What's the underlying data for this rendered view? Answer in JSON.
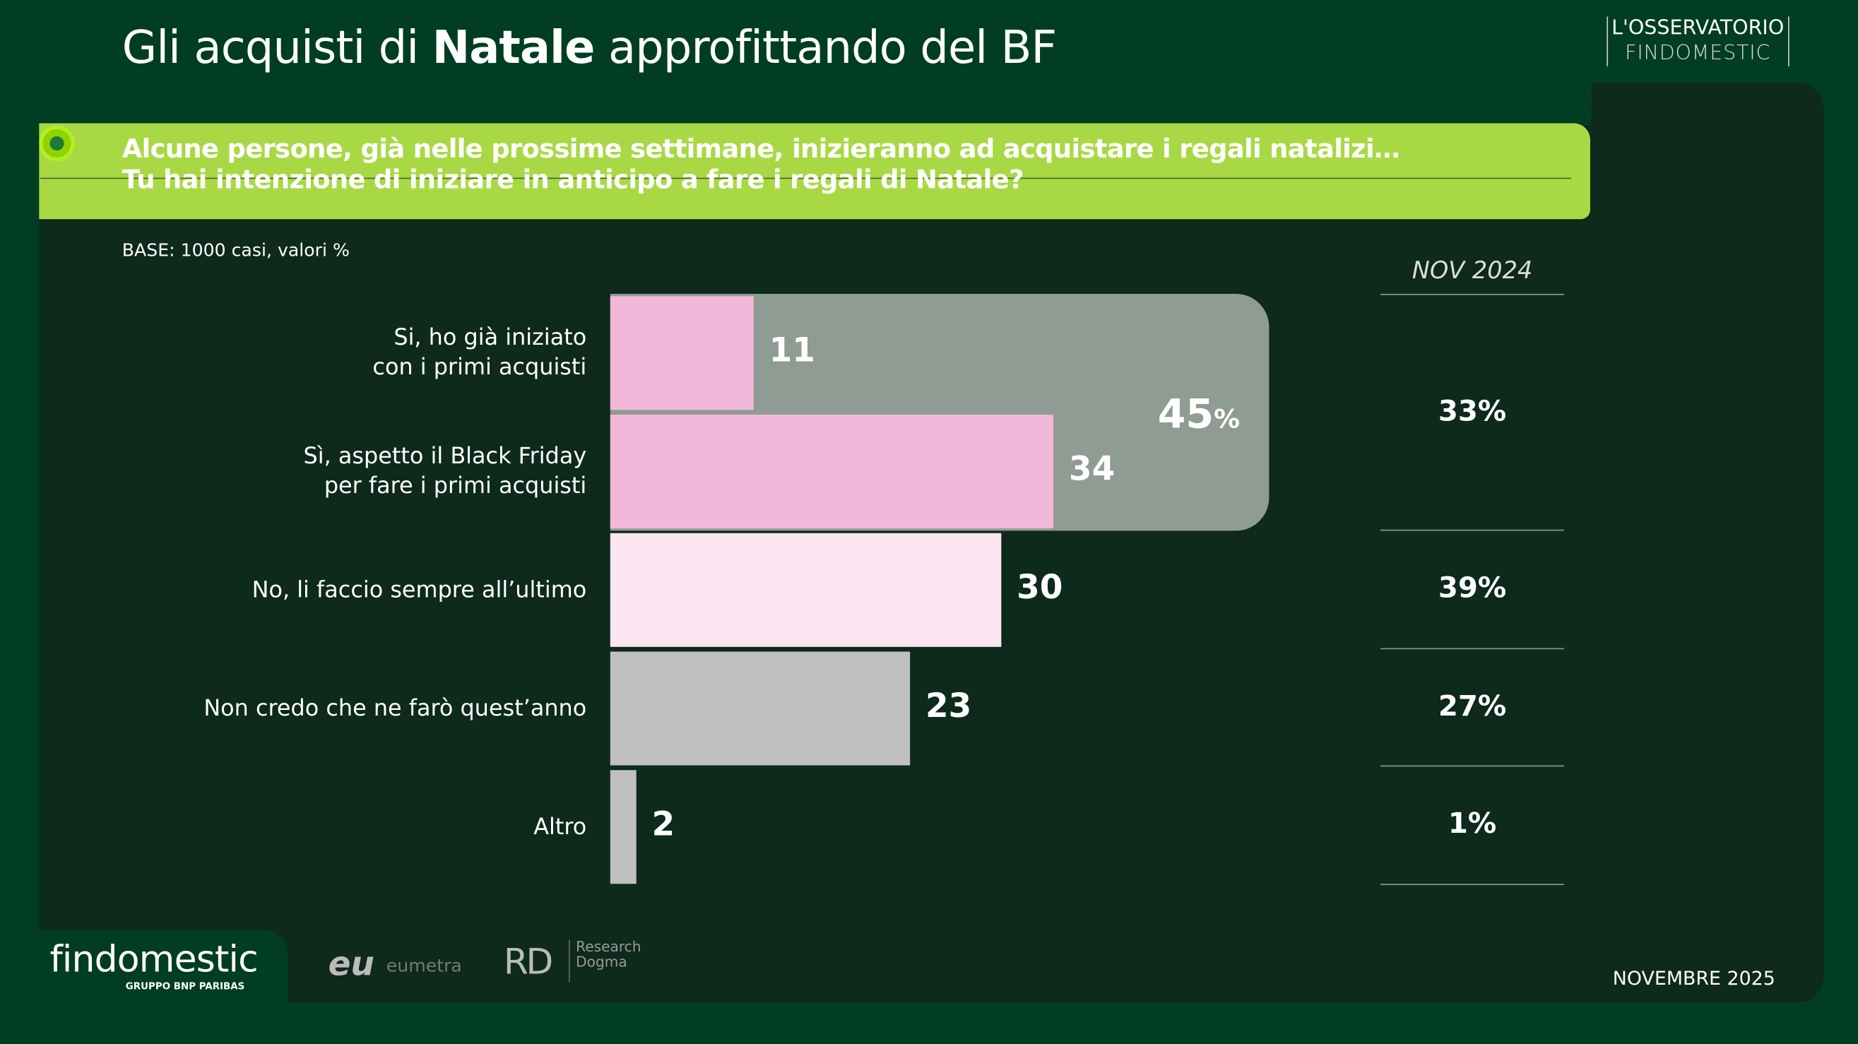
{
  "header": {
    "title_pre": "Gli acquisti di ",
    "title_bold": "Natale",
    "title_post": " approfittando del BF",
    "brand_line1": "L'OSSERVATORIO",
    "brand_line2": "FINDOMESTIC"
  },
  "question": {
    "line1": "Alcune persone, già nelle prossime settimane, inizieranno ad acquistare i regali natalizi…",
    "line2": "Tu hai intenzione di iniziare in anticipo a fare i regali di Natale?"
  },
  "base": "BASE: 1000 casi, valori %",
  "chart_data": {
    "type": "bar",
    "orientation": "horizontal",
    "categories": [
      "Si, ho già iniziato\ncon i primi acquisti",
      "Sì, aspetto il Black Friday\nper fare i primi acquisti",
      "No, li faccio sempre all’ultimo",
      "Non credo che ne farò quest’anno",
      "Altro"
    ],
    "values": [
      11,
      34,
      30,
      23,
      2
    ],
    "colors": [
      "#f2b8d9",
      "#f2b8d9",
      "#fce6f1",
      "#c0c0c0",
      "#c0c0c0"
    ],
    "group_total": {
      "value": "45",
      "unit": "%",
      "categories": [
        0,
        1
      ],
      "color": "#8f9c93"
    },
    "comparison": {
      "header": "NOV 2024",
      "values": [
        "33%",
        "39%",
        "27%",
        "1%"
      ]
    }
  },
  "footer": {
    "logo": "findomestic",
    "logo_sub": "GRUPPO BNP PARIBAS",
    "partner1": "eu",
    "partner1_name": "eumetra",
    "partner2": "RD",
    "partner2_name_1": "Research",
    "partner2_name_2": "Dogma",
    "date": "NOVEMBRE 2025"
  },
  "colors": {
    "background": "#003d22",
    "panel": "#0d2a1c",
    "accent": "#a8d944"
  }
}
